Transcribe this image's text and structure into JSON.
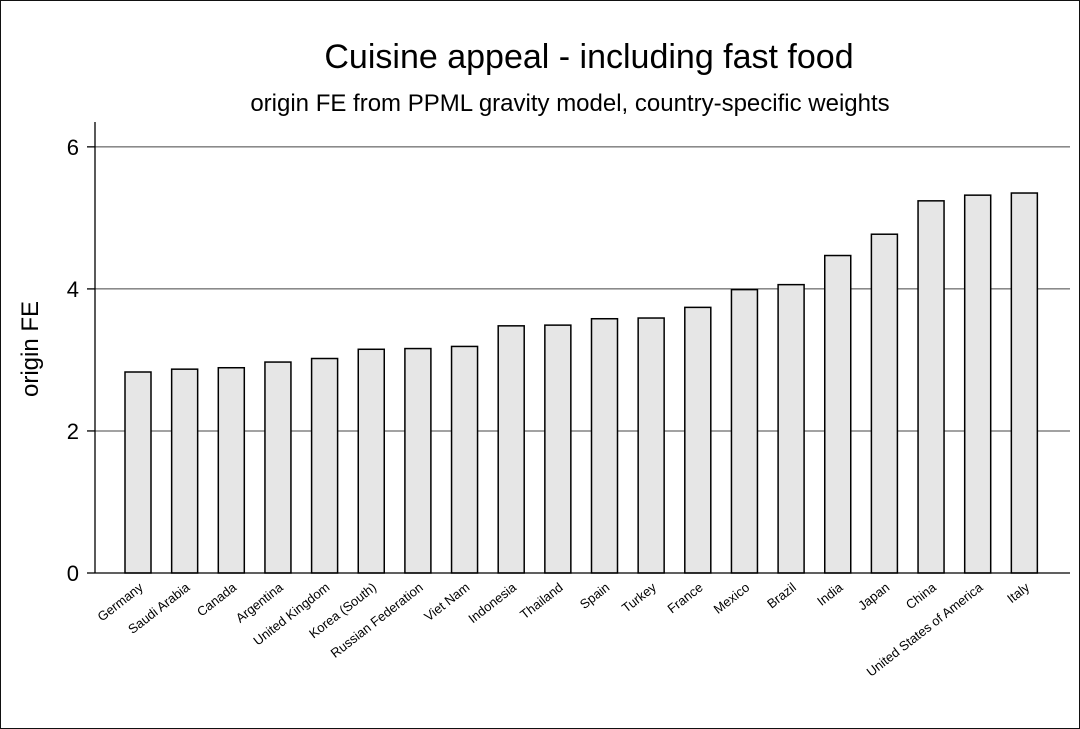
{
  "chart_data": {
    "type": "bar",
    "title": "Cuisine appeal - including fast food",
    "subtitle": "origin FE from PPML gravity model, country-specific weights",
    "xlabel": "",
    "ylabel": "origin FE",
    "ylim": [
      0,
      6.35
    ],
    "yticks": [
      0,
      2,
      4,
      6
    ],
    "grid": true,
    "legend": "none",
    "colors": {
      "bar_fill": "#e6e6e6",
      "bar_stroke": "#000000"
    },
    "categories": [
      "Germany",
      "Saudi Arabia",
      "Canada",
      "Argentina",
      "United Kingdom",
      "Korea (South)",
      "Russian Federation",
      "Viet Nam",
      "Indonesia",
      "Thailand",
      "Spain",
      "Turkey",
      "France",
      "Mexico",
      "Brazil",
      "India",
      "Japan",
      "China",
      "United States of America",
      "Italy"
    ],
    "values": [
      2.83,
      2.87,
      2.89,
      2.97,
      3.02,
      3.15,
      3.16,
      3.19,
      3.48,
      3.49,
      3.58,
      3.59,
      3.74,
      3.99,
      4.06,
      4.47,
      4.77,
      5.24,
      5.32,
      5.35
    ]
  }
}
